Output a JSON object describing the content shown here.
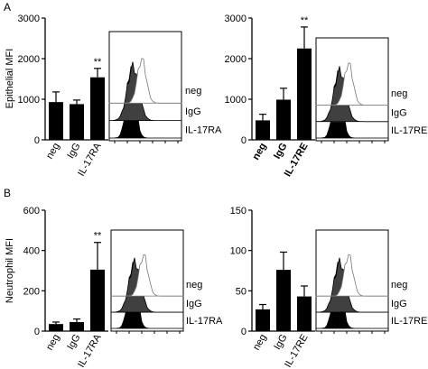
{
  "panels": [
    {
      "id": "A",
      "letter": "A"
    },
    {
      "id": "B",
      "letter": "B"
    }
  ],
  "chart_data": [
    {
      "id": "A-left",
      "type": "bar",
      "panel": "A",
      "ylabel": "Epithelial MFI",
      "yticks": [
        0,
        1000,
        2000,
        3000
      ],
      "ylim": [
        0,
        3000
      ],
      "categories": [
        "neg",
        "IgG",
        "IL-17RA"
      ],
      "values": [
        930,
        880,
        1540
      ],
      "errors": [
        250,
        100,
        220
      ],
      "significance": [
        "",
        "",
        "**"
      ],
      "bold_tick_labels": false
    },
    {
      "id": "A-right",
      "type": "bar",
      "panel": "A",
      "ylabel": "",
      "yticks": [
        0,
        1000,
        2000,
        3000
      ],
      "ylim": [
        0,
        3000
      ],
      "categories": [
        "neg",
        "IgG",
        "IL-17RE"
      ],
      "values": [
        480,
        990,
        2250
      ],
      "errors": [
        150,
        280,
        530
      ],
      "significance": [
        "",
        "",
        "**"
      ],
      "bold_tick_labels": true
    },
    {
      "id": "B-left",
      "type": "bar",
      "panel": "B",
      "ylabel": "Neutrophil MFI",
      "yticks": [
        0,
        200,
        400,
        600
      ],
      "ylim": [
        0,
        600
      ],
      "categories": [
        "neg",
        "IgG",
        "IL-17RA"
      ],
      "values": [
        35,
        45,
        305
      ],
      "errors": [
        10,
        15,
        135
      ],
      "significance": [
        "",
        "",
        "**"
      ],
      "bold_tick_labels": false
    },
    {
      "id": "B-right",
      "type": "bar",
      "panel": "B",
      "ylabel": "",
      "yticks": [
        0,
        50,
        100,
        150
      ],
      "ylim": [
        0,
        150
      ],
      "categories": [
        "neg",
        "IgG",
        "IL-17RE"
      ],
      "values": [
        27,
        76,
        43
      ],
      "errors": [
        6,
        22,
        13
      ],
      "significance": [
        "",
        "",
        ""
      ],
      "bold_tick_labels": false
    }
  ],
  "histograms": [
    {
      "id": "A-left-hist",
      "legend": [
        "neg",
        "IgG",
        "IL-17RA"
      ],
      "colors": [
        "#000000",
        "#404040",
        "#ffffff"
      ]
    },
    {
      "id": "A-right-hist",
      "legend": [
        "neg",
        "IgG",
        "IL-17RE"
      ],
      "colors": [
        "#000000",
        "#404040",
        "#ffffff"
      ]
    },
    {
      "id": "B-left-hist",
      "legend": [
        "neg",
        "IgG",
        "IL-17RA"
      ],
      "colors": [
        "#000000",
        "#404040",
        "#ffffff"
      ]
    },
    {
      "id": "B-right-hist",
      "legend": [
        "neg",
        "IgG",
        "IL-17RE"
      ],
      "colors": [
        "#000000",
        "#404040",
        "#ffffff"
      ]
    }
  ]
}
